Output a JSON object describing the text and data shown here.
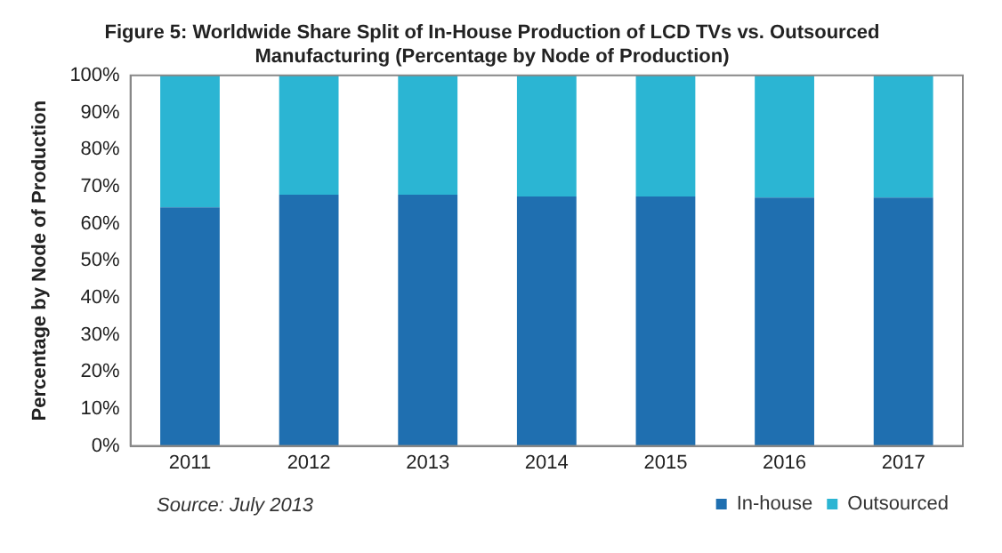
{
  "chart_data": {
    "type": "bar",
    "title": "Figure 5: Worldwide Share Split of In-House Production of LCD TVs vs. Outsourced Manufacturing (Percentage by Node of Production)",
    "ylabel": "Percentage by Node of Production",
    "categories": [
      "2011",
      "2012",
      "2013",
      "2014",
      "2015",
      "2016",
      "2017"
    ],
    "series": [
      {
        "name": "In-house",
        "color": "#1f6fb0",
        "values": [
          64.4,
          67.8,
          67.8,
          67.3,
          67.3,
          67.0,
          67.0
        ]
      },
      {
        "name": "Outsourced",
        "color": "#2bb5d3",
        "values": [
          35.6,
          32.2,
          32.2,
          32.7,
          32.7,
          33.0,
          33.0
        ]
      }
    ],
    "stacked": true,
    "ylim": [
      0,
      100
    ],
    "yticks": [
      {
        "value": 0,
        "label": "0%"
      },
      {
        "value": 10,
        "label": "10%"
      },
      {
        "value": 20,
        "label": "20%"
      },
      {
        "value": 30,
        "label": "30%"
      },
      {
        "value": 40,
        "label": "40%"
      },
      {
        "value": 50,
        "label": "50%"
      },
      {
        "value": 60,
        "label": "60%"
      },
      {
        "value": 70,
        "label": "70%"
      },
      {
        "value": 80,
        "label": "80%"
      },
      {
        "value": 90,
        "label": "90%"
      },
      {
        "value": 100,
        "label": "100%"
      }
    ],
    "grid": false,
    "legend": "bottom right",
    "annotations": [
      "Source: July 2013"
    ]
  }
}
